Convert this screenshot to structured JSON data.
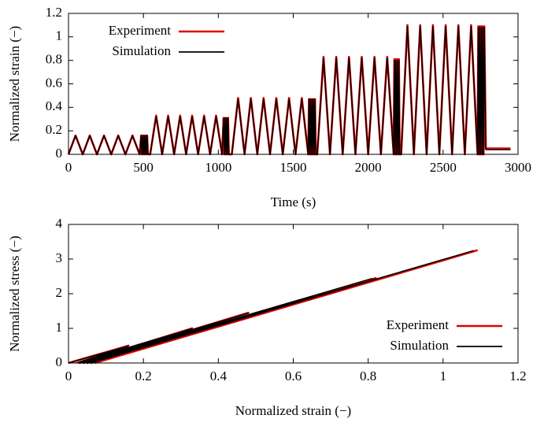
{
  "chart_data": [
    {
      "type": "line",
      "x_label": "Time (s)",
      "y_label": "Normalized strain (−)",
      "xlim": [
        0,
        3000
      ],
      "xticks": [
        0,
        500,
        1000,
        1500,
        2000,
        2500,
        3000
      ],
      "ylim": [
        0,
        1.2
      ],
      "yticks": [
        0,
        0.2,
        0.4,
        0.6,
        0.8,
        1,
        1.2
      ],
      "legend": "upper-left",
      "x": [
        0,
        47,
        95,
        142,
        190,
        237,
        285,
        332,
        380,
        427,
        475,
        485,
        490,
        495,
        500,
        505,
        510,
        515,
        520,
        525,
        530,
        545,
        585,
        625,
        665,
        705,
        745,
        785,
        825,
        865,
        905,
        945,
        985,
        1025,
        1035,
        1040,
        1045,
        1050,
        1055,
        1060,
        1065,
        1070,
        1090,
        1132,
        1175,
        1217,
        1260,
        1302,
        1345,
        1387,
        1430,
        1472,
        1515,
        1557,
        1600,
        1605,
        1610,
        1615,
        1620,
        1625,
        1630,
        1635,
        1640,
        1645,
        1650,
        1660,
        1702,
        1745,
        1787,
        1830,
        1872,
        1915,
        1957,
        2000,
        2042,
        2085,
        2127,
        2170,
        2175,
        2180,
        2185,
        2190,
        2195,
        2200,
        2205,
        2210,
        2220,
        2262,
        2305,
        2347,
        2390,
        2432,
        2475,
        2517,
        2560,
        2602,
        2645,
        2687,
        2730,
        2735,
        2740,
        2745,
        2750,
        2755,
        2760,
        2765,
        2770,
        2775,
        2785,
        2950
      ],
      "series": [
        {
          "name": "Experiment",
          "color": "#e00000",
          "values": [
            0,
            0.16,
            0,
            0.16,
            0,
            0.16,
            0,
            0.16,
            0,
            0.16,
            0,
            0.16,
            0,
            0.16,
            0,
            0.16,
            0,
            0.16,
            0,
            0.16,
            0,
            0,
            0.33,
            0,
            0.33,
            0,
            0.33,
            0,
            0.33,
            0,
            0.33,
            0,
            0.33,
            0,
            0.31,
            0,
            0.31,
            0,
            0.31,
            0,
            0.31,
            0,
            0,
            0.48,
            0,
            0.48,
            0,
            0.48,
            0,
            0.48,
            0,
            0.48,
            0,
            0.48,
            0,
            0.47,
            0,
            0.47,
            0,
            0.47,
            0,
            0.47,
            0,
            0.47,
            0,
            0,
            0.83,
            0,
            0.83,
            0,
            0.83,
            0,
            0.83,
            0,
            0.83,
            0,
            0.83,
            0,
            0.81,
            0,
            0.81,
            0,
            0.81,
            0,
            0.81,
            0,
            0,
            1.1,
            0,
            1.1,
            0,
            1.1,
            0,
            1.1,
            0,
            1.1,
            0,
            1.1,
            0,
            1.09,
            0,
            1.09,
            0,
            1.09,
            0,
            1.09,
            0,
            1.09,
            0.05,
            0.05
          ]
        },
        {
          "name": "Simulation",
          "color": "#000000",
          "values": [
            0,
            0.16,
            0,
            0.16,
            0,
            0.16,
            0,
            0.16,
            0,
            0.16,
            0,
            0.16,
            0,
            0.16,
            0,
            0.16,
            0,
            0.16,
            0,
            0.16,
            0,
            0,
            0.32,
            0,
            0.32,
            0,
            0.32,
            0,
            0.32,
            0,
            0.32,
            0,
            0.32,
            0,
            0.31,
            0,
            0.31,
            0,
            0.31,
            0,
            0.31,
            0,
            0,
            0.47,
            0,
            0.47,
            0,
            0.47,
            0,
            0.47,
            0,
            0.47,
            0,
            0.47,
            0,
            0.47,
            0,
            0.47,
            0,
            0.47,
            0,
            0.47,
            0,
            0.47,
            0,
            0,
            0.82,
            0,
            0.82,
            0,
            0.82,
            0,
            0.82,
            0,
            0.82,
            0,
            0.82,
            0,
            0.8,
            0,
            0.8,
            0,
            0.8,
            0,
            0.8,
            0,
            0,
            1.09,
            0,
            1.09,
            0,
            1.09,
            0,
            1.09,
            0,
            1.09,
            0,
            1.09,
            0,
            1.08,
            0,
            1.08,
            0,
            1.08,
            0,
            1.08,
            0,
            1.08,
            0.04,
            0.04
          ]
        }
      ]
    },
    {
      "type": "line",
      "x_label": "Normalized strain (−)",
      "y_label": "Normalized stress (−)",
      "xlim": [
        0,
        1.2
      ],
      "xticks": [
        0,
        0.2,
        0.4,
        0.6,
        0.8,
        1,
        1.2
      ],
      "ylim": [
        0,
        4
      ],
      "yticks": [
        0,
        1,
        2,
        3,
        4
      ],
      "legend": "lower-right",
      "series": [
        {
          "name": "Experiment",
          "color": "#e00000",
          "x": [
            0,
            0.16,
            0.03,
            0.33,
            0.04,
            0.48,
            0.05,
            0.82,
            0.06,
            1.09,
            0.07
          ],
          "values": [
            0,
            0.5,
            0,
            1.0,
            0,
            1.45,
            0,
            2.45,
            0,
            3.25,
            0
          ]
        },
        {
          "name": "Simulation",
          "color": "#000000",
          "x": [
            0,
            0.16,
            0.02,
            0.33,
            0.03,
            0.48,
            0.04,
            0.81,
            0.05,
            1.08,
            0.06
          ],
          "values": [
            0,
            0.49,
            0,
            0.99,
            0,
            1.44,
            0,
            2.44,
            0,
            3.24,
            0
          ]
        }
      ]
    }
  ]
}
